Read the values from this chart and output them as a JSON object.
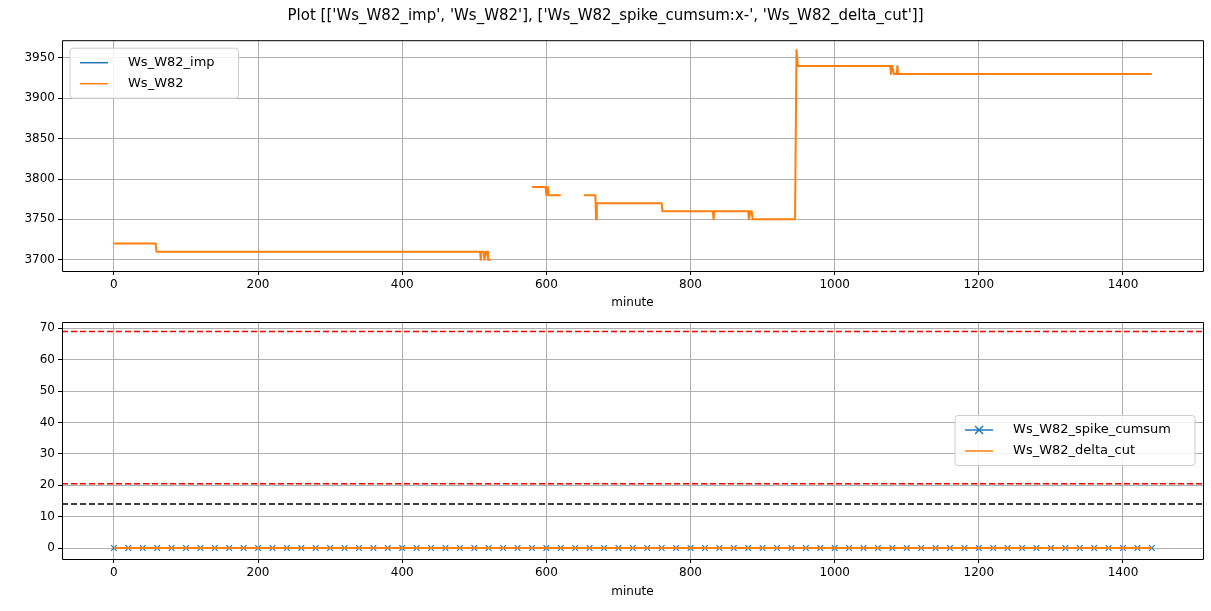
{
  "chart_data": [
    {
      "type": "line",
      "title": "Plot [['Ws_W82_imp', 'Ws_W82'], ['Ws_W82_spike_cumsum:x-', 'Ws_W82_delta_cut']]",
      "xlabel": "minute",
      "xlim": [
        -72,
        1511
      ],
      "xticks": [
        0,
        200,
        400,
        600,
        800,
        1000,
        1200,
        1400
      ],
      "ylim": [
        3686,
        3972
      ],
      "yticks": [
        3700,
        3750,
        3800,
        3850,
        3900,
        3950
      ],
      "grid": true,
      "legend": "top left",
      "series": [
        {
          "name": "Ws_W82_imp",
          "color": "#1f77b4"
        },
        {
          "name": "Ws_W82",
          "color": "#ff7f0e",
          "x": [
            0,
            58,
            59,
            508,
            509,
            510,
            513,
            514,
            516,
            518,
            519,
            523,
            524,
            580,
            599,
            600,
            602,
            603,
            620,
            621,
            652,
            668,
            669,
            670,
            760,
            761,
            831,
            832,
            833,
            880,
            881,
            883,
            885,
            886,
            945,
            947,
            949,
            1077,
            1078,
            1080,
            1082,
            1086,
            1087,
            1088,
            1440
          ],
          "values": [
            3720,
            3720,
            3710,
            3710,
            3700,
            3710,
            3710,
            3700,
            3710,
            3710,
            3700,
            3700,
            null,
            3790,
            3790,
            3780,
            3790,
            3780,
            3780,
            null,
            3780,
            3780,
            3750,
            3770,
            3770,
            3760,
            3760,
            3750,
            3760,
            3760,
            3750,
            3760,
            3760,
            3750,
            3750,
            3960,
            3940,
            3940,
            3930,
            3940,
            3930,
            3930,
            3940,
            3930,
            3930
          ]
        }
      ]
    },
    {
      "type": "line",
      "xlabel": "minute",
      "xlim": [
        -72,
        1511
      ],
      "xticks": [
        0,
        200,
        400,
        600,
        800,
        1000,
        1200,
        1400
      ],
      "ylim": [
        -3.5,
        72
      ],
      "yticks": [
        0,
        10,
        20,
        30,
        40,
        50,
        60,
        70
      ],
      "grid": true,
      "legend": "right",
      "ref_lines": [
        {
          "axis": "y",
          "value": 69,
          "color": "#ff0000",
          "line_style": "dashed"
        },
        {
          "axis": "y",
          "value": 20.5,
          "color": "#ff0000",
          "line_style": "dashed"
        },
        {
          "axis": "y",
          "value": 14,
          "color": "#000000",
          "line_style": "dashed"
        }
      ],
      "series": [
        {
          "name": "Ws_W82_spike_cumsum",
          "type": "scatter",
          "color": "#1f77b4",
          "marker": "cross",
          "x": [
            0,
            20,
            40,
            60,
            80,
            100,
            120,
            140,
            160,
            180,
            200,
            220,
            240,
            260,
            280,
            300,
            320,
            340,
            360,
            380,
            400,
            420,
            440,
            460,
            480,
            500,
            520,
            540,
            560,
            580,
            600,
            620,
            640,
            660,
            680,
            700,
            720,
            740,
            760,
            780,
            800,
            820,
            840,
            860,
            880,
            900,
            920,
            940,
            960,
            980,
            1000,
            1020,
            1040,
            1060,
            1080,
            1100,
            1120,
            1140,
            1160,
            1180,
            1200,
            1220,
            1240,
            1260,
            1280,
            1300,
            1320,
            1340,
            1360,
            1380,
            1400,
            1420,
            1440
          ],
          "values": [
            0,
            0,
            0,
            0,
            0,
            0,
            0,
            0,
            0,
            0,
            0,
            0,
            0,
            0,
            0,
            0,
            0,
            0,
            0,
            0,
            0,
            0,
            0,
            0,
            0,
            0,
            0,
            0,
            0,
            0,
            0,
            0,
            0,
            0,
            0,
            0,
            0,
            0,
            0,
            0,
            0,
            0,
            0,
            0,
            0,
            0,
            0,
            0,
            0,
            0,
            0,
            0,
            0,
            0,
            0,
            0,
            0,
            0,
            0,
            0,
            0,
            0,
            0,
            0,
            0,
            0,
            0,
            0,
            0,
            0,
            0,
            0,
            0
          ]
        },
        {
          "name": "Ws_W82_delta_cut",
          "color": "#ff7f0e",
          "x": [
            0,
            1440
          ],
          "values": [
            0,
            0
          ]
        }
      ]
    }
  ]
}
